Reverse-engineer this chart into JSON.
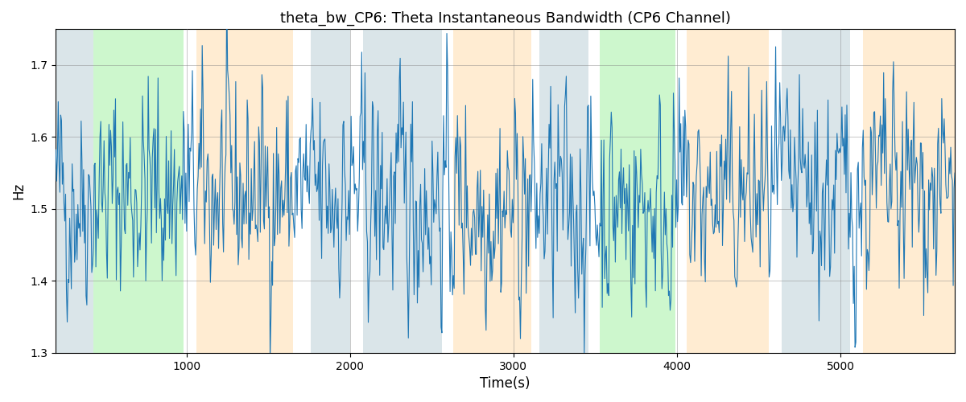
{
  "title": "theta_bw_CP6: Theta Instantaneous Bandwidth (CP6 Channel)",
  "xlabel": "Time(s)",
  "ylabel": "Hz",
  "ylim": [
    1.3,
    1.75
  ],
  "xlim": [
    200,
    5700
  ],
  "bg_bands": [
    {
      "xmin": 200,
      "xmax": 430,
      "color": "#AEC6CF",
      "alpha": 0.45
    },
    {
      "xmin": 430,
      "xmax": 980,
      "color": "#90EE90",
      "alpha": 0.45
    },
    {
      "xmin": 1060,
      "xmax": 1650,
      "color": "#FFDEAD",
      "alpha": 0.55
    },
    {
      "xmin": 1760,
      "xmax": 2000,
      "color": "#AEC6CF",
      "alpha": 0.45
    },
    {
      "xmin": 2080,
      "xmax": 2560,
      "color": "#AEC6CF",
      "alpha": 0.45
    },
    {
      "xmin": 2630,
      "xmax": 3110,
      "color": "#FFDEAD",
      "alpha": 0.55
    },
    {
      "xmin": 3160,
      "xmax": 3460,
      "color": "#AEC6CF",
      "alpha": 0.45
    },
    {
      "xmin": 3530,
      "xmax": 3990,
      "color": "#90EE90",
      "alpha": 0.45
    },
    {
      "xmin": 4060,
      "xmax": 4560,
      "color": "#FFDEAD",
      "alpha": 0.55
    },
    {
      "xmin": 4640,
      "xmax": 5060,
      "color": "#AEC6CF",
      "alpha": 0.45
    },
    {
      "xmin": 5140,
      "xmax": 5700,
      "color": "#FFDEAD",
      "alpha": 0.55
    }
  ],
  "line_color": "#1f77b4",
  "line_width": 0.8,
  "yticks": [
    1.3,
    1.4,
    1.5,
    1.6,
    1.7
  ],
  "xticks": [
    1000,
    2000,
    3000,
    4000,
    5000
  ],
  "title_fontsize": 13,
  "seed": 42,
  "n_points": 1100,
  "mean": 1.515,
  "noise_std": 0.075
}
